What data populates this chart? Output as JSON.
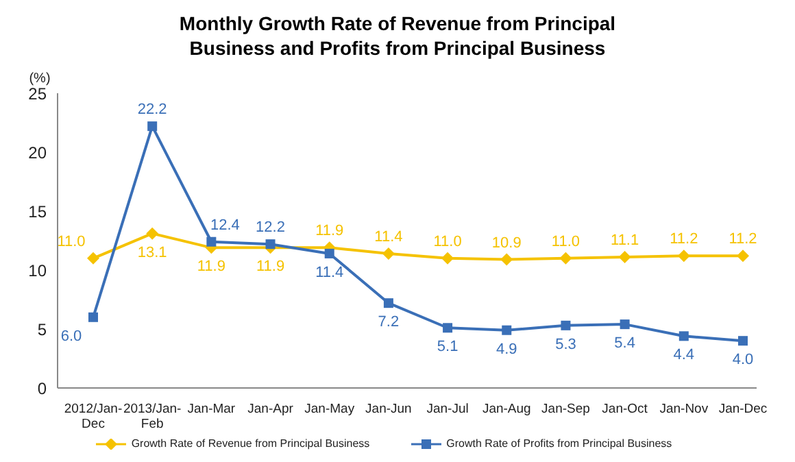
{
  "chart_data": {
    "type": "line",
    "title": "Monthly Growth Rate of Revenue from Principal Business and  Profits from Principal Business",
    "ylabel": "(%)",
    "categories": [
      "2012/Jan-Dec",
      "2013/Jan-Feb",
      "Jan-Mar",
      "Jan-Apr",
      "Jan-May",
      "Jan-Jun",
      "Jan-Jul",
      "Jan-Aug",
      "Jan-Sep",
      "Jan-Oct",
      "Jan-Nov",
      "Jan-Dec"
    ],
    "series": [
      {
        "name": "Growth Rate of Revenue from Principal Business",
        "color": "#f5c200",
        "marker": "diamond",
        "values": [
          11.0,
          13.1,
          11.9,
          11.9,
          11.9,
          11.4,
          11.0,
          10.9,
          11.0,
          11.1,
          11.2,
          11.2
        ],
        "value_labels": [
          "11.0",
          "13.1",
          "11.9",
          "11.9",
          "11.9",
          "11.4",
          "11.0",
          "10.9",
          "11.0",
          "11.1",
          "11.2",
          "11.2"
        ]
      },
      {
        "name": "Growth Rate of Profits from Principal Business",
        "color": "#3a6fb7",
        "marker": "square",
        "values": [
          6.0,
          22.2,
          12.4,
          12.2,
          11.4,
          7.2,
          5.1,
          4.9,
          5.3,
          5.4,
          4.4,
          4.0
        ],
        "value_labels": [
          "6.0",
          "22.2",
          "12.4",
          "12.2",
          "11.4",
          "7.2",
          "5.1",
          "4.9",
          "5.3",
          "5.4",
          "4.4",
          "4.0"
        ]
      }
    ],
    "ylim": [
      0,
      25
    ],
    "yticks": [
      0,
      5,
      10,
      15,
      20,
      25
    ],
    "legend": "bottom"
  }
}
